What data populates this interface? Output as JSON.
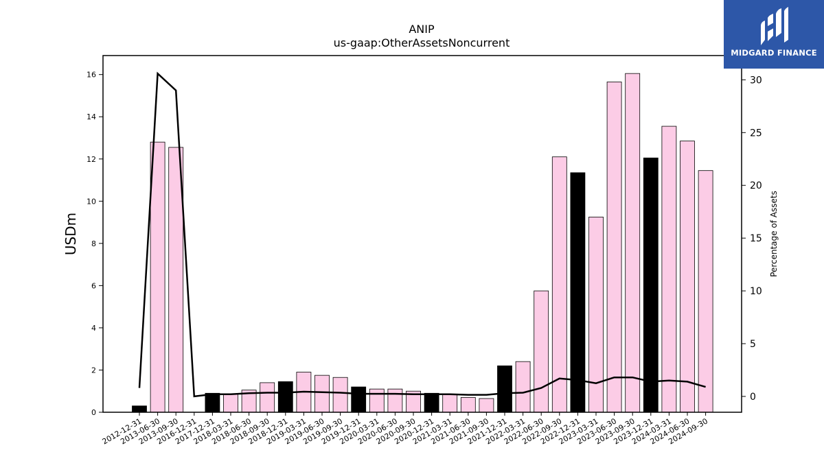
{
  "chart_data": {
    "type": "bar",
    "title": "ANIP",
    "subtitle": "us-gaap:OtherAssetsNoncurrent",
    "ylabel": "USDm",
    "y2label": "Percentage of Assets",
    "ylim": [
      0,
      16.9
    ],
    "y2lim": [
      -1.5,
      32.3
    ],
    "yticks": [
      "0",
      "2",
      "4",
      "6",
      "8",
      "10",
      "12",
      "14",
      "16"
    ],
    "y2ticks": [
      "0",
      "5",
      "10",
      "15",
      "20",
      "25",
      "30"
    ],
    "categories": [
      "2012-12-31",
      "2013-06-30",
      "2013-09-30",
      "2016-12-31",
      "2017-12-31",
      "2018-03-31",
      "2018-06-30",
      "2018-09-30",
      "2018-12-31",
      "2019-03-31",
      "2019-06-30",
      "2019-09-30",
      "2019-12-31",
      "2020-03-31",
      "2020-06-30",
      "2020-09-30",
      "2020-12-31",
      "2021-03-31",
      "2021-06-30",
      "2021-09-30",
      "2021-12-31",
      "2022-03-31",
      "2022-06-30",
      "2022-09-30",
      "2022-12-31",
      "2023-03-31",
      "2023-06-30",
      "2023-09-30",
      "2023-12-31",
      "2024-03-31",
      "2024-06-30",
      "2024-09-30"
    ],
    "values": [
      0.3,
      12.8,
      12.55,
      0.0,
      0.9,
      0.85,
      1.05,
      1.4,
      1.45,
      1.9,
      1.75,
      1.65,
      1.2,
      1.1,
      1.1,
      1.0,
      0.9,
      0.85,
      0.7,
      0.65,
      2.2,
      2.4,
      5.75,
      12.1,
      11.35,
      9.25,
      15.65,
      16.05,
      12.05,
      13.55,
      12.85,
      11.45
    ],
    "annual": [
      true,
      false,
      false,
      true,
      true,
      false,
      false,
      false,
      true,
      false,
      false,
      false,
      true,
      false,
      false,
      false,
      true,
      false,
      false,
      false,
      true,
      false,
      false,
      false,
      true,
      false,
      false,
      false,
      true,
      false,
      false,
      false
    ],
    "pct_assets": [
      0.8,
      30.6,
      29.0,
      0.0,
      0.2,
      0.2,
      0.3,
      0.35,
      0.35,
      0.45,
      0.4,
      0.35,
      0.25,
      0.25,
      0.25,
      0.2,
      0.2,
      0.2,
      0.15,
      0.15,
      0.3,
      0.35,
      0.8,
      1.7,
      1.55,
      1.25,
      1.8,
      1.8,
      1.4,
      1.5,
      1.4,
      0.9
    ],
    "colors": {
      "annual_bar": "#000000",
      "quarter_bar": "#fccce6",
      "line": "#000000"
    },
    "grid": false,
    "legend": "none"
  },
  "brand": {
    "name": "MIDGARD FINANCE",
    "icon": "midgard-logo-icon",
    "color": "#2d57a8"
  }
}
